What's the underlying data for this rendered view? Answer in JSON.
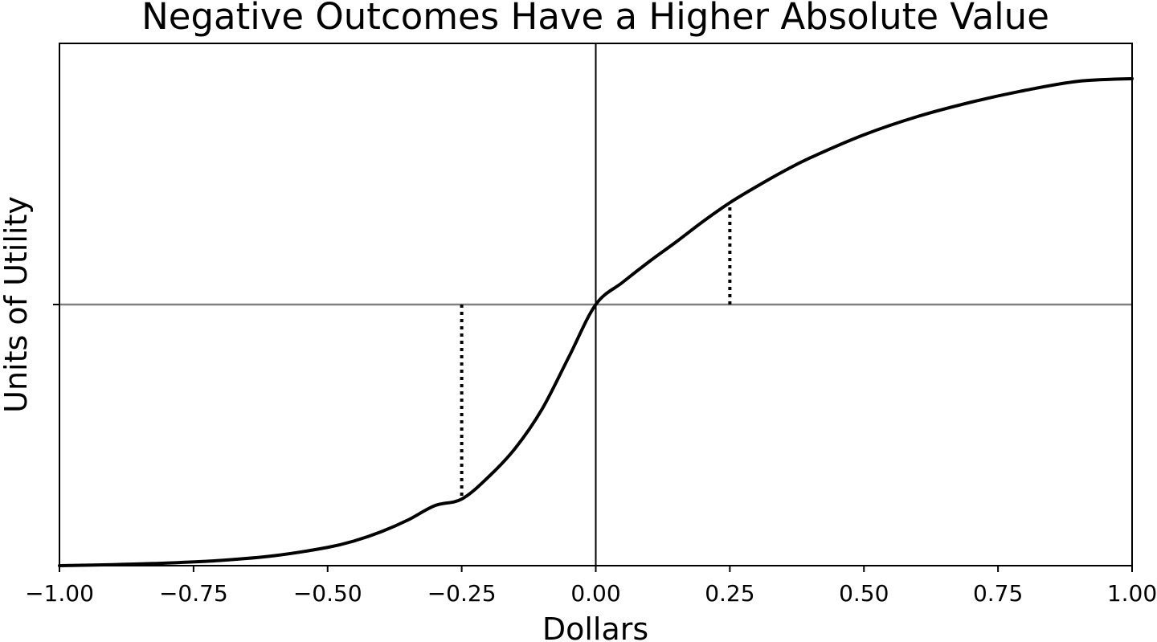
{
  "chart_data": {
    "type": "line",
    "title": "Negative Outcomes Have a Higher Absolute Value",
    "xlabel": "Dollars",
    "ylabel": "Units of Utility",
    "xlim": [
      -1.0,
      1.0
    ],
    "ylim": [
      -1.0,
      1.0
    ],
    "x_ticks": [
      "−1.00",
      "−0.75",
      "−0.50",
      "−0.25",
      "0.00",
      "0.25",
      "0.50",
      "0.75",
      "1.00"
    ],
    "x_tick_values": [
      -1.0,
      -0.75,
      -0.5,
      -0.25,
      0.0,
      0.25,
      0.5,
      0.75,
      1.0
    ],
    "y_tick_values": [
      0.0
    ],
    "grid": false,
    "reference_lines": {
      "vertical_at_x": 0.0,
      "horizontal_at_y": 0.0,
      "horizontal_color": "#808080",
      "vertical_color": "#000000"
    },
    "series": [
      {
        "color": "#000000",
        "points": [
          [
            -1.0,
            -1.0
          ],
          [
            -0.9,
            -0.996
          ],
          [
            -0.8,
            -0.99
          ],
          [
            -0.7,
            -0.98
          ],
          [
            -0.6,
            -0.962
          ],
          [
            -0.5,
            -0.93
          ],
          [
            -0.45,
            -0.905
          ],
          [
            -0.4,
            -0.87
          ],
          [
            -0.35,
            -0.825
          ],
          [
            -0.3,
            -0.77
          ],
          [
            -0.25,
            -0.745
          ],
          [
            -0.2,
            -0.66
          ],
          [
            -0.15,
            -0.55
          ],
          [
            -0.1,
            -0.4
          ],
          [
            -0.05,
            -0.2
          ],
          [
            0.0,
            0.0
          ],
          [
            0.05,
            0.085
          ],
          [
            0.1,
            0.165
          ],
          [
            0.15,
            0.24
          ],
          [
            0.2,
            0.318
          ],
          [
            0.25,
            0.39
          ],
          [
            0.3,
            0.452
          ],
          [
            0.35,
            0.51
          ],
          [
            0.4,
            0.562
          ],
          [
            0.5,
            0.65
          ],
          [
            0.6,
            0.72
          ],
          [
            0.7,
            0.775
          ],
          [
            0.8,
            0.82
          ],
          [
            0.9,
            0.855
          ],
          [
            1.0,
            0.865
          ]
        ]
      }
    ],
    "dotted_markers": [
      {
        "x": 0.25,
        "y_from": 0.0,
        "y_to": 0.39
      },
      {
        "x": -0.25,
        "y_from": 0.0,
        "y_to": -0.745
      }
    ]
  }
}
